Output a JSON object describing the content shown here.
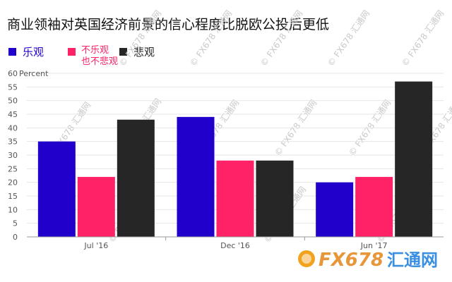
{
  "chart_data": {
    "type": "bar",
    "title": "商业领袖对英国经济前景的信心程度比脱欧公投后更低",
    "ylabel": "Percent",
    "ylim": [
      0,
      60
    ],
    "yticks": [
      0,
      5,
      10,
      15,
      20,
      25,
      30,
      35,
      40,
      45,
      50,
      55,
      60
    ],
    "grid": true,
    "legend_position": "top-left",
    "categories": [
      "Jul '16",
      "Dec '16",
      "Jun '17"
    ],
    "series": [
      {
        "name": "乐观",
        "color": "#2200cc",
        "values": [
          35,
          44,
          20
        ]
      },
      {
        "name": "不乐观也不悲观",
        "name_lines": [
          "不乐观",
          "也不悲观"
        ],
        "color": "#ff2266",
        "values": [
          22,
          28,
          22
        ]
      },
      {
        "name": "悲观",
        "color": "#262626",
        "values": [
          43,
          28,
          57
        ]
      }
    ]
  },
  "watermark": {
    "text": "FX678",
    "cn": "汇通网"
  }
}
